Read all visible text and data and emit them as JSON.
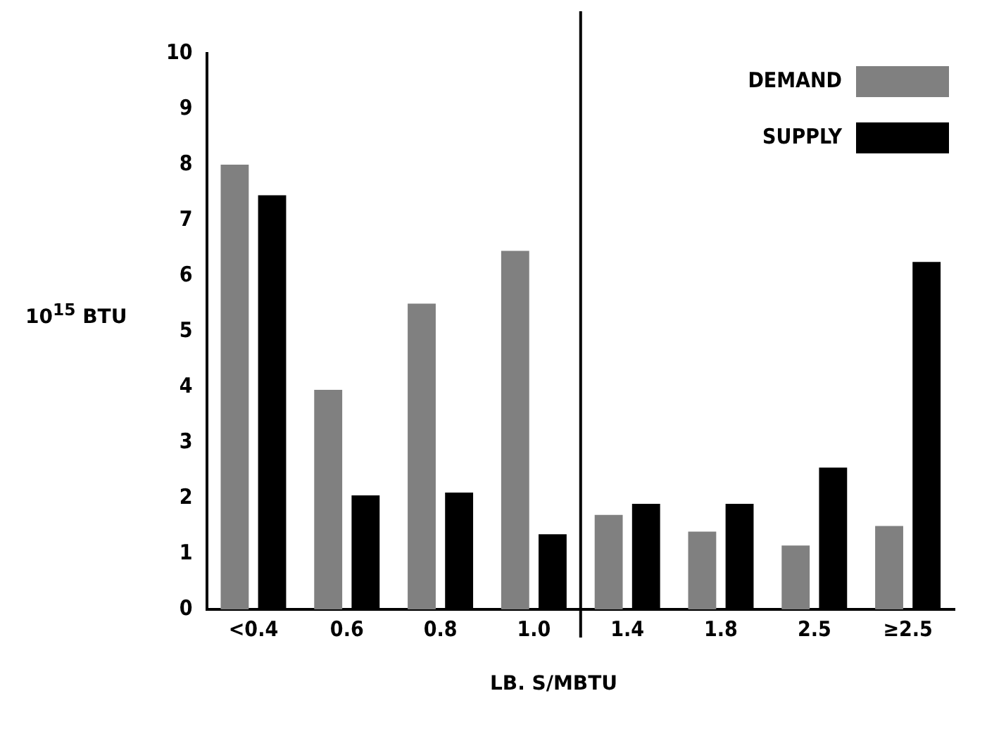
{
  "chart_data": {
    "type": "bar",
    "xlabel": "LB. S/MBTU",
    "ylabel": "10$^{15}$ BTU",
    "categories": [
      "<0.4",
      "0.6",
      "0.8",
      "1.0",
      "1.4",
      "1.8",
      "2.5",
      "≥2.5"
    ],
    "series": [
      {
        "name": "DEMAND",
        "color": "#808080",
        "values": [
          8.0,
          3.95,
          5.5,
          6.45,
          1.7,
          1.4,
          1.15,
          1.5
        ]
      },
      {
        "name": "SUPPLY",
        "color": "#000000",
        "values": [
          7.45,
          2.05,
          2.1,
          1.35,
          1.9,
          1.9,
          2.55,
          6.25
        ]
      }
    ],
    "ylim": [
      0,
      10
    ],
    "yticks": [
      0,
      1,
      2,
      3,
      4,
      5,
      6,
      7,
      8,
      9,
      10
    ],
    "grid": false,
    "legend": "top right"
  }
}
